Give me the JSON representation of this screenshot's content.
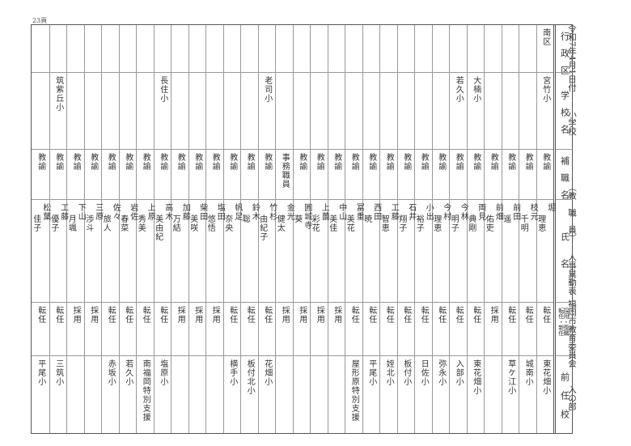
{
  "page_label": "23頁",
  "title": {
    "date": "令和7年4月1日付",
    "level": "小学校",
    "category": "（教　職　員）",
    "doc": "人事異動表",
    "org": "福岡市教育委員会",
    "section": "入の部"
  },
  "headers": {
    "district": "行政区",
    "school": "学校名",
    "position": "補職名",
    "name": "氏名",
    "type_line1": "採用・復職",
    "type_line2": "転任・新任",
    "previous": "前任校"
  },
  "rows": [
    {
      "district": "南区",
      "school": "宮竹小",
      "position": "教諭",
      "surname": "堀",
      "given": "理恵",
      "type": "転任",
      "previous": "東花畑小"
    },
    {
      "district": "",
      "school": "",
      "position": "教諭",
      "surname": "枝元",
      "given": "千明",
      "type": "転任",
      "previous": "城南小"
    },
    {
      "district": "",
      "school": "",
      "position": "教諭",
      "surname": "前田",
      "given": "遥",
      "type": "転任",
      "previous": "草ケ江小"
    },
    {
      "district": "",
      "school": "",
      "position": "教諭",
      "surname": "前畑",
      "given": "佑吏",
      "type": "採用",
      "previous": ""
    },
    {
      "district": "",
      "school": "大楠小",
      "position": "教諭",
      "surname": "両見",
      "given": "典剛",
      "type": "転任",
      "previous": "東花畑小"
    },
    {
      "district": "",
      "school": "若久小",
      "position": "教諭",
      "surname": "今林",
      "given": "明子",
      "type": "転任",
      "previous": "入部小"
    },
    {
      "district": "",
      "school": "",
      "position": "教諭",
      "surname": "今村",
      "given": "理恵",
      "type": "転任",
      "previous": "弥永小"
    },
    {
      "district": "",
      "school": "",
      "position": "教諭",
      "surname": "小出",
      "given": "裕子",
      "type": "転任",
      "previous": "日佐小"
    },
    {
      "district": "",
      "school": "",
      "position": "教諭",
      "surname": "石井",
      "given": "翔子",
      "type": "転任",
      "previous": "板付小"
    },
    {
      "district": "",
      "school": "",
      "position": "教諭",
      "surname": "工藤",
      "given": "智恵",
      "type": "転任",
      "previous": "姪北小"
    },
    {
      "district": "",
      "school": "",
      "position": "教諭",
      "surname": "西田",
      "given": "暁",
      "type": "転任",
      "previous": "平尾小"
    },
    {
      "district": "",
      "school": "",
      "position": "教諭",
      "surname": "冨重",
      "given": "美花",
      "type": "転任",
      "previous": "屋形原特別支援"
    },
    {
      "district": "",
      "school": "",
      "position": "教諭",
      "surname": "中山",
      "given": "美佳",
      "type": "採用",
      "previous": ""
    },
    {
      "district": "",
      "school": "",
      "position": "教諭",
      "surname": "上薗",
      "given": "彩花",
      "type": "採用",
      "previous": ""
    },
    {
      "district": "",
      "school": "",
      "position": "教諭",
      "surname": "圓城寺",
      "given": "葵",
      "type": "採用",
      "previous": ""
    },
    {
      "district": "",
      "school": "",
      "position": "事務職員",
      "surname": "金光",
      "given": "健太",
      "type": "採用",
      "previous": ""
    },
    {
      "district": "",
      "school": "老司小",
      "position": "教諭",
      "surname": "竹杉",
      "given": "由紀子",
      "type": "転任",
      "previous": "花畑小"
    },
    {
      "district": "",
      "school": "",
      "position": "教諭",
      "surname": "鈴木",
      "given": "聡",
      "type": "転任",
      "previous": "板付北小"
    },
    {
      "district": "",
      "school": "",
      "position": "教諭",
      "surname": "帆足",
      "given": "奈央",
      "type": "転任",
      "previous": "横手小"
    },
    {
      "district": "",
      "school": "",
      "position": "教諭",
      "surname": "塩田",
      "given": "悠悟",
      "type": "採用",
      "previous": ""
    },
    {
      "district": "",
      "school": "",
      "position": "教諭",
      "surname": "柴田",
      "given": "美咲",
      "type": "採用",
      "previous": ""
    },
    {
      "district": "",
      "school": "",
      "position": "教諭",
      "surname": "加藤",
      "given": "万結",
      "type": "採用",
      "previous": ""
    },
    {
      "district": "",
      "school": "長住小",
      "position": "教諭",
      "surname": "高木",
      "given": "美由紀",
      "type": "転任",
      "previous": "塩原小"
    },
    {
      "district": "",
      "school": "",
      "position": "教諭",
      "surname": "上原",
      "given": "秀美",
      "type": "転任",
      "previous": "南福岡特別支援"
    },
    {
      "district": "",
      "school": "",
      "position": "教諭",
      "surname": "岩佐",
      "given": "春菜",
      "type": "転任",
      "previous": "若久小"
    },
    {
      "district": "",
      "school": "",
      "position": "教諭",
      "surname": "佐々",
      "given": "旅人",
      "type": "転任",
      "previous": "赤坂小"
    },
    {
      "district": "",
      "school": "",
      "position": "教諭",
      "surname": "三原",
      "given": "渉斗",
      "type": "採用",
      "previous": ""
    },
    {
      "district": "",
      "school": "",
      "position": "教諭",
      "surname": "下山",
      "given": "月颯",
      "type": "採用",
      "previous": ""
    },
    {
      "district": "",
      "school": "筑紫丘小",
      "position": "教諭",
      "surname": "工藤",
      "given": "優子",
      "type": "転任",
      "previous": "三筑小"
    },
    {
      "district": "",
      "school": "",
      "position": "教諭",
      "surname": "松葉",
      "given": "佳子",
      "type": "転任",
      "previous": "平尾小"
    }
  ]
}
